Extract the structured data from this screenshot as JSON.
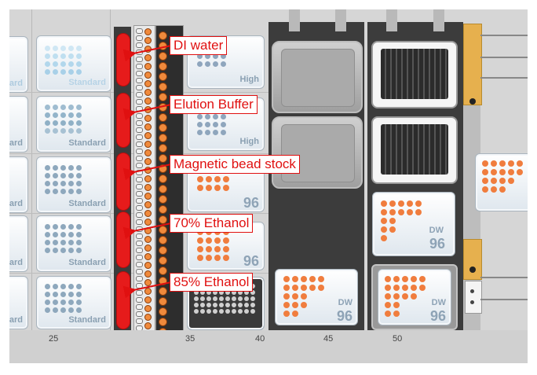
{
  "callouts": {
    "di_water": "DI water",
    "elution_buffer": "Elution Buffer",
    "magnetic_bead_stock": "Magnetic bead stock",
    "ethanol_70": "70% Ethanol",
    "ethanol_85": "85% Ethanol"
  },
  "plate_labels": {
    "standard": "Standard",
    "standard_partial": "ndard",
    "standard_partial2": "andard",
    "high": "High",
    "dw": "DW",
    "ninety_six": "96"
  },
  "axis_ticks": [
    "25",
    "35",
    "40",
    "45",
    "50"
  ],
  "colors": {
    "trough_red": "#e61b1b",
    "orange_well": "#f07d3e",
    "blue_well": "#8fa6bd",
    "light_blue_well": "#bcdcef",
    "dark_panel": "#3c3c3c",
    "gold_clamp": "#e6b04e"
  }
}
